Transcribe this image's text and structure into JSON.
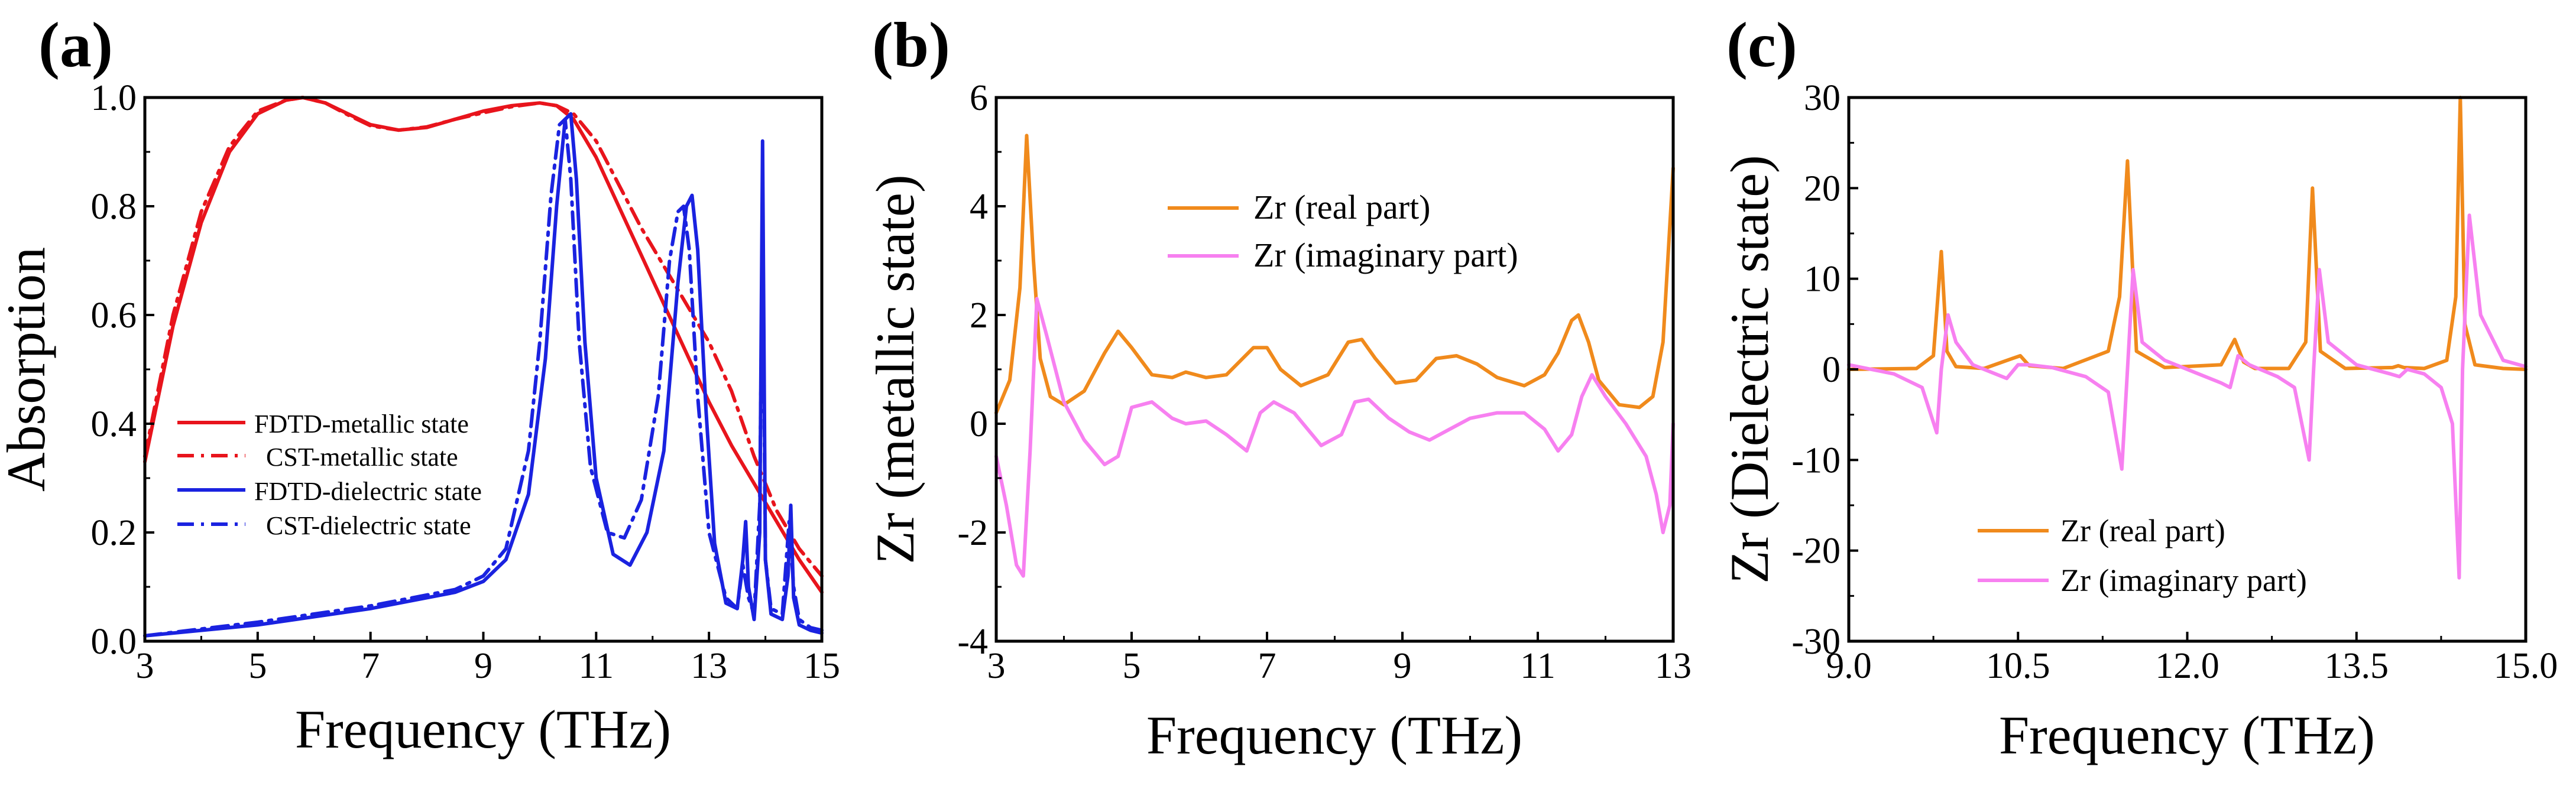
{
  "chart_data": [
    {
      "id": "a",
      "type": "line",
      "panel_label": "(a)",
      "xlabel": "Frequency (THz)",
      "ylabel": "Absorption",
      "xlim": [
        3,
        15
      ],
      "ylim": [
        0,
        1.0
      ],
      "xticks": [
        3,
        5,
        7,
        9,
        11,
        13,
        15
      ],
      "xtick_labels": [
        "3",
        "5",
        "7",
        "9",
        "11",
        "13",
        "15"
      ],
      "yticks": [
        0,
        0.2,
        0.4,
        0.6,
        0.8,
        1.0
      ],
      "ytick_labels": [
        "0.0",
        "0.2",
        "0.4",
        "0.6",
        "0.8",
        "1.0"
      ],
      "legend_position": "lower-left",
      "series": [
        {
          "name": "FDTD-metallic state",
          "color": "#e8141c",
          "dash": "solid",
          "x": [
            3.0,
            3.5,
            4.0,
            4.5,
            5.0,
            5.5,
            5.8,
            6.2,
            6.6,
            7.0,
            7.5,
            8.0,
            8.5,
            9.0,
            9.5,
            10.0,
            10.3,
            10.6,
            11.0,
            11.4,
            11.8,
            12.2,
            12.6,
            13.0,
            13.4,
            13.8,
            14.2,
            14.6,
            15.0
          ],
          "y": [
            0.33,
            0.58,
            0.77,
            0.9,
            0.97,
            0.995,
            1.0,
            0.99,
            0.97,
            0.95,
            0.94,
            0.945,
            0.96,
            0.975,
            0.985,
            0.99,
            0.985,
            0.96,
            0.89,
            0.8,
            0.71,
            0.62,
            0.53,
            0.44,
            0.36,
            0.29,
            0.22,
            0.15,
            0.09
          ]
        },
        {
          "name": "CST-metallic state",
          "color": "#e8141c",
          "dash": "dashdot",
          "x": [
            3.0,
            3.5,
            4.0,
            4.5,
            5.0,
            5.5,
            5.8,
            6.2,
            6.6,
            7.0,
            7.5,
            8.0,
            8.5,
            9.0,
            9.5,
            10.0,
            10.3,
            10.6,
            11.0,
            11.4,
            11.8,
            12.2,
            12.6,
            13.0,
            13.4,
            13.8,
            14.2,
            14.6,
            15.0
          ],
          "y": [
            0.34,
            0.6,
            0.79,
            0.91,
            0.975,
            0.995,
            1.0,
            0.99,
            0.968,
            0.948,
            0.94,
            0.946,
            0.96,
            0.972,
            0.983,
            0.99,
            0.985,
            0.97,
            0.92,
            0.84,
            0.76,
            0.69,
            0.62,
            0.55,
            0.46,
            0.34,
            0.24,
            0.17,
            0.12
          ]
        },
        {
          "name": "FDTD-dielectric state",
          "color": "#1a22e0",
          "dash": "solid",
          "x": [
            3.0,
            5.0,
            7.0,
            8.5,
            9.0,
            9.4,
            9.8,
            10.1,
            10.3,
            10.45,
            10.55,
            10.65,
            10.8,
            11.0,
            11.3,
            11.6,
            11.9,
            12.2,
            12.45,
            12.6,
            12.7,
            12.8,
            12.95,
            13.1,
            13.3,
            13.5,
            13.6,
            13.65,
            13.7,
            13.8,
            13.9,
            13.95,
            14.0,
            14.1,
            14.3,
            14.4,
            14.45,
            14.5,
            14.6,
            14.8,
            15.0
          ],
          "y": [
            0.01,
            0.03,
            0.06,
            0.09,
            0.11,
            0.15,
            0.27,
            0.52,
            0.8,
            0.96,
            0.97,
            0.85,
            0.55,
            0.3,
            0.16,
            0.14,
            0.2,
            0.35,
            0.66,
            0.8,
            0.82,
            0.72,
            0.42,
            0.18,
            0.07,
            0.06,
            0.15,
            0.22,
            0.1,
            0.04,
            0.2,
            0.92,
            0.15,
            0.05,
            0.04,
            0.12,
            0.25,
            0.08,
            0.03,
            0.02,
            0.015
          ]
        },
        {
          "name": "CST-dielectric state",
          "color": "#1a22e0",
          "dash": "dashdot",
          "x": [
            3.0,
            5.0,
            7.0,
            8.5,
            9.0,
            9.4,
            9.8,
            10.0,
            10.2,
            10.35,
            10.45,
            10.55,
            10.7,
            10.9,
            11.2,
            11.5,
            11.8,
            12.1,
            12.3,
            12.45,
            12.55,
            12.65,
            12.8,
            13.0,
            13.3,
            13.5,
            13.6,
            13.7,
            13.8,
            13.9,
            13.95,
            14.0,
            14.1,
            14.3,
            14.42,
            14.5,
            14.6,
            14.8,
            15.0
          ],
          "y": [
            0.01,
            0.035,
            0.065,
            0.095,
            0.12,
            0.17,
            0.35,
            0.55,
            0.82,
            0.95,
            0.96,
            0.85,
            0.55,
            0.32,
            0.2,
            0.19,
            0.26,
            0.45,
            0.7,
            0.79,
            0.8,
            0.72,
            0.45,
            0.2,
            0.08,
            0.06,
            0.14,
            0.08,
            0.05,
            0.25,
            0.78,
            0.15,
            0.06,
            0.05,
            0.22,
            0.1,
            0.04,
            0.025,
            0.02
          ]
        }
      ]
    },
    {
      "id": "b",
      "type": "line",
      "panel_label": "(b)",
      "xlabel": "Frequency (THz)",
      "ylabel": "Zr (metallic state)",
      "xlim": [
        3,
        13
      ],
      "ylim": [
        -4,
        6
      ],
      "xticks": [
        3,
        5,
        7,
        9,
        11,
        13
      ],
      "xtick_labels": [
        "3",
        "5",
        "7",
        "9",
        "11",
        "13"
      ],
      "yticks": [
        -4,
        -2,
        0,
        2,
        4,
        6
      ],
      "ytick_labels": [
        "-4",
        "-2",
        "0",
        "2",
        "4",
        "6"
      ],
      "legend_position": "top-center",
      "series": [
        {
          "name": "Zr (real part)",
          "color": "#f08a1c",
          "dash": "solid",
          "x": [
            3.0,
            3.2,
            3.35,
            3.45,
            3.55,
            3.65,
            3.8,
            4.0,
            4.3,
            4.6,
            4.8,
            5.0,
            5.3,
            5.6,
            5.8,
            6.1,
            6.4,
            6.8,
            7.0,
            7.2,
            7.5,
            7.9,
            8.2,
            8.4,
            8.6,
            8.9,
            9.2,
            9.5,
            9.8,
            10.1,
            10.4,
            10.8,
            11.1,
            11.3,
            11.5,
            11.6,
            11.75,
            11.9,
            12.2,
            12.5,
            12.7,
            12.85,
            13.0
          ],
          "y": [
            0.2,
            0.8,
            2.5,
            5.3,
            3.0,
            1.2,
            0.5,
            0.35,
            0.6,
            1.3,
            1.7,
            1.4,
            0.9,
            0.85,
            0.95,
            0.85,
            0.9,
            1.4,
            1.4,
            1.0,
            0.7,
            0.9,
            1.5,
            1.55,
            1.2,
            0.75,
            0.8,
            1.2,
            1.25,
            1.1,
            0.85,
            0.7,
            0.9,
            1.3,
            1.9,
            2.0,
            1.5,
            0.8,
            0.35,
            0.3,
            0.5,
            1.5,
            4.7
          ]
        },
        {
          "name": "Zr (imaginary part)",
          "color": "#f780f0",
          "dash": "solid",
          "x": [
            3.0,
            3.15,
            3.3,
            3.4,
            3.5,
            3.6,
            3.75,
            4.0,
            4.3,
            4.6,
            4.8,
            5.0,
            5.3,
            5.6,
            5.8,
            6.1,
            6.4,
            6.7,
            6.9,
            7.1,
            7.4,
            7.8,
            8.1,
            8.3,
            8.5,
            8.8,
            9.1,
            9.4,
            9.7,
            10.0,
            10.4,
            10.8,
            11.1,
            11.3,
            11.5,
            11.65,
            11.8,
            12.0,
            12.3,
            12.6,
            12.75,
            12.85,
            12.95,
            13.0
          ],
          "y": [
            -0.6,
            -1.5,
            -2.6,
            -2.8,
            -0.5,
            2.3,
            1.6,
            0.4,
            -0.3,
            -0.75,
            -0.6,
            0.3,
            0.4,
            0.1,
            0.0,
            0.05,
            -0.2,
            -0.5,
            0.2,
            0.4,
            0.2,
            -0.4,
            -0.2,
            0.4,
            0.45,
            0.1,
            -0.15,
            -0.3,
            -0.1,
            0.1,
            0.2,
            0.2,
            -0.1,
            -0.5,
            -0.2,
            0.5,
            0.9,
            0.5,
            0.0,
            -0.6,
            -1.3,
            -2.0,
            -1.5,
            0.0
          ]
        }
      ]
    },
    {
      "id": "c",
      "type": "line",
      "panel_label": "(c)",
      "xlabel": "Frequency (THz)",
      "ylabel": "Zr (Dielectric state)",
      "xlim": [
        9.0,
        15.0
      ],
      "ylim": [
        -30,
        30
      ],
      "xticks": [
        9.0,
        10.5,
        12.0,
        13.5,
        15.0
      ],
      "xtick_labels": [
        "9.0",
        "10.5",
        "12.0",
        "13.5",
        "15.0"
      ],
      "yticks": [
        -30,
        -20,
        -10,
        0,
        10,
        20,
        30
      ],
      "ytick_labels": [
        "-30",
        "-20",
        "-10",
        "0",
        "10",
        "20",
        "30"
      ],
      "legend_position": "bottom-center",
      "series": [
        {
          "name": "Zr (real part)",
          "color": "#f08a1c",
          "dash": "solid",
          "x": [
            9.0,
            9.6,
            9.75,
            9.82,
            9.87,
            9.95,
            10.2,
            10.45,
            10.52,
            10.6,
            10.9,
            11.3,
            11.4,
            11.47,
            11.55,
            11.8,
            12.3,
            12.42,
            12.5,
            12.6,
            12.9,
            13.05,
            13.11,
            13.18,
            13.4,
            13.82,
            13.87,
            13.92,
            14.1,
            14.3,
            14.38,
            14.42,
            14.46,
            14.55,
            14.8,
            15.0
          ],
          "y": [
            0.0,
            0.1,
            1.5,
            13.0,
            2.0,
            0.3,
            0.1,
            1.2,
            1.5,
            0.4,
            0.1,
            2.0,
            8.0,
            23.0,
            2.0,
            0.2,
            0.5,
            3.3,
            0.8,
            0.1,
            0.1,
            3.0,
            20.0,
            2.0,
            0.1,
            0.2,
            0.4,
            0.2,
            0.1,
            1.0,
            8.0,
            30.0,
            5.0,
            0.5,
            0.1,
            0.0
          ]
        },
        {
          "name": "Zr (imaginary part)",
          "color": "#f780f0",
          "dash": "solid",
          "x": [
            9.0,
            9.4,
            9.65,
            9.78,
            9.82,
            9.88,
            9.95,
            10.1,
            10.3,
            10.4,
            10.5,
            10.6,
            10.8,
            11.1,
            11.3,
            11.42,
            11.47,
            11.52,
            11.6,
            11.8,
            12.1,
            12.3,
            12.38,
            12.45,
            12.55,
            12.8,
            12.95,
            13.08,
            13.12,
            13.17,
            13.25,
            13.5,
            13.8,
            13.88,
            13.95,
            14.1,
            14.25,
            14.35,
            14.41,
            14.44,
            14.5,
            14.6,
            14.8,
            15.0
          ],
          "y": [
            0.5,
            -0.5,
            -2.0,
            -7.0,
            0.0,
            6.0,
            3.0,
            0.5,
            -0.5,
            -1.0,
            0.5,
            0.5,
            0.2,
            -0.8,
            -2.5,
            -11.0,
            0.0,
            11.0,
            3.0,
            1.0,
            -0.5,
            -1.5,
            -2.0,
            1.5,
            0.5,
            -0.8,
            -2.0,
            -10.0,
            0.0,
            11.0,
            3.0,
            0.5,
            -0.5,
            -0.8,
            0.0,
            -0.5,
            -2.0,
            -6.0,
            -23.0,
            0.0,
            17.0,
            6.0,
            1.0,
            0.3
          ]
        }
      ]
    }
  ]
}
